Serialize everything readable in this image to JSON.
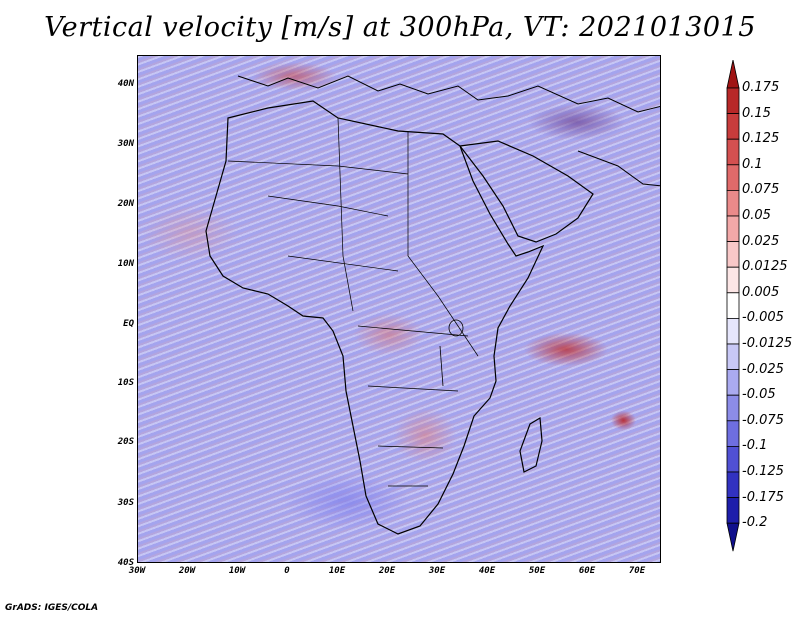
{
  "title": "Vertical velocity [m/s] at 300hPa, VT: 2021013015",
  "credit": "GrADS: IGES/COLA",
  "map": {
    "lat_labels": [
      "40N",
      "30N",
      "20N",
      "10N",
      "EQ",
      "10S",
      "20S",
      "30S",
      "40S"
    ],
    "lon_labels": [
      "30W",
      "20W",
      "10W",
      "0",
      "10E",
      "20E",
      "30E",
      "40E",
      "50E",
      "60E",
      "70E"
    ],
    "colors": {
      "rising": "#c83232",
      "sinking": "#5050dc",
      "neutral": "#ffffff"
    }
  },
  "colorbar": {
    "levels": [
      "0.175",
      "0.15",
      "0.125",
      "0.1",
      "0.075",
      "0.05",
      "0.025",
      "0.0125",
      "0.005",
      "-0.005",
      "-0.0125",
      "-0.025",
      "-0.05",
      "-0.075",
      "-0.1",
      "-0.125",
      "-0.175",
      "-0.2"
    ],
    "colors": [
      "#a01414",
      "#b82828",
      "#c83c3c",
      "#d45050",
      "#e06a6a",
      "#ea8a8a",
      "#f2a8a8",
      "#f8c8c8",
      "#fce6e6",
      "#ffffff",
      "#e6e6fc",
      "#c8c8f6",
      "#aaaaf0",
      "#8c8ce8",
      "#6e6ee0",
      "#5050d4",
      "#3232c0",
      "#1e1eaa",
      "#10108c"
    ]
  }
}
